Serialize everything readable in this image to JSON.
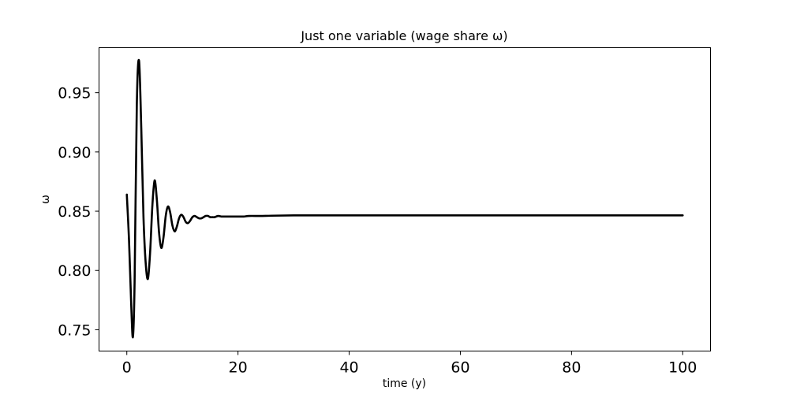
{
  "chart_data": {
    "type": "line",
    "title": "Just one variable (wage share ω)",
    "xlabel": "time (y)",
    "ylabel": "ω",
    "xlim": [
      -5,
      105
    ],
    "ylim": [
      0.732,
      0.988
    ],
    "xticks": [
      0,
      20,
      40,
      60,
      80,
      100
    ],
    "xtick_labels": [
      "0",
      "20",
      "40",
      "60",
      "80",
      "100"
    ],
    "yticks": [
      0.75,
      0.8,
      0.85,
      0.9,
      0.95
    ],
    "ytick_labels": [
      "0.75",
      "0.80",
      "0.85",
      "0.90",
      "0.95"
    ],
    "grid": false,
    "legend": "none",
    "series": [
      {
        "color": "#000000",
        "x": [
          0,
          0.4,
          0.8,
          1.1,
          1.4,
          1.8,
          2.2,
          2.6,
          3.0,
          3.4,
          3.8,
          4.2,
          4.6,
          5.0,
          5.4,
          5.8,
          6.2,
          6.6,
          7.0,
          7.4,
          7.8,
          8.2,
          8.6,
          9.0,
          9.4,
          9.8,
          10.2,
          10.6,
          11.0,
          11.4,
          11.8,
          12.2,
          12.6,
          13.0,
          13.4,
          13.8,
          14.2,
          14.6,
          15.0,
          15.4,
          15.8,
          16.4,
          17.0,
          17.6,
          18.2,
          18.8,
          19.4,
          20.0,
          21.0,
          22.0,
          24.0,
          26.0,
          30.0,
          35.0,
          40.0,
          50.0,
          60.0,
          70.0,
          80.0,
          90.0,
          100.0
        ],
        "values": [
          0.864,
          0.825,
          0.77,
          0.744,
          0.79,
          0.94,
          0.977,
          0.92,
          0.845,
          0.806,
          0.793,
          0.816,
          0.855,
          0.876,
          0.86,
          0.832,
          0.819,
          0.828,
          0.846,
          0.854,
          0.849,
          0.838,
          0.833,
          0.837,
          0.844,
          0.847,
          0.845,
          0.841,
          0.84,
          0.842,
          0.845,
          0.846,
          0.845,
          0.844,
          0.844,
          0.845,
          0.846,
          0.846,
          0.845,
          0.845,
          0.845,
          0.846,
          0.8455,
          0.8455,
          0.8455,
          0.8455,
          0.8455,
          0.8455,
          0.8455,
          0.846,
          0.846,
          0.8462,
          0.8465,
          0.8465,
          0.8465,
          0.8465,
          0.8465,
          0.8465,
          0.8465,
          0.8465,
          0.8465
        ]
      }
    ]
  }
}
